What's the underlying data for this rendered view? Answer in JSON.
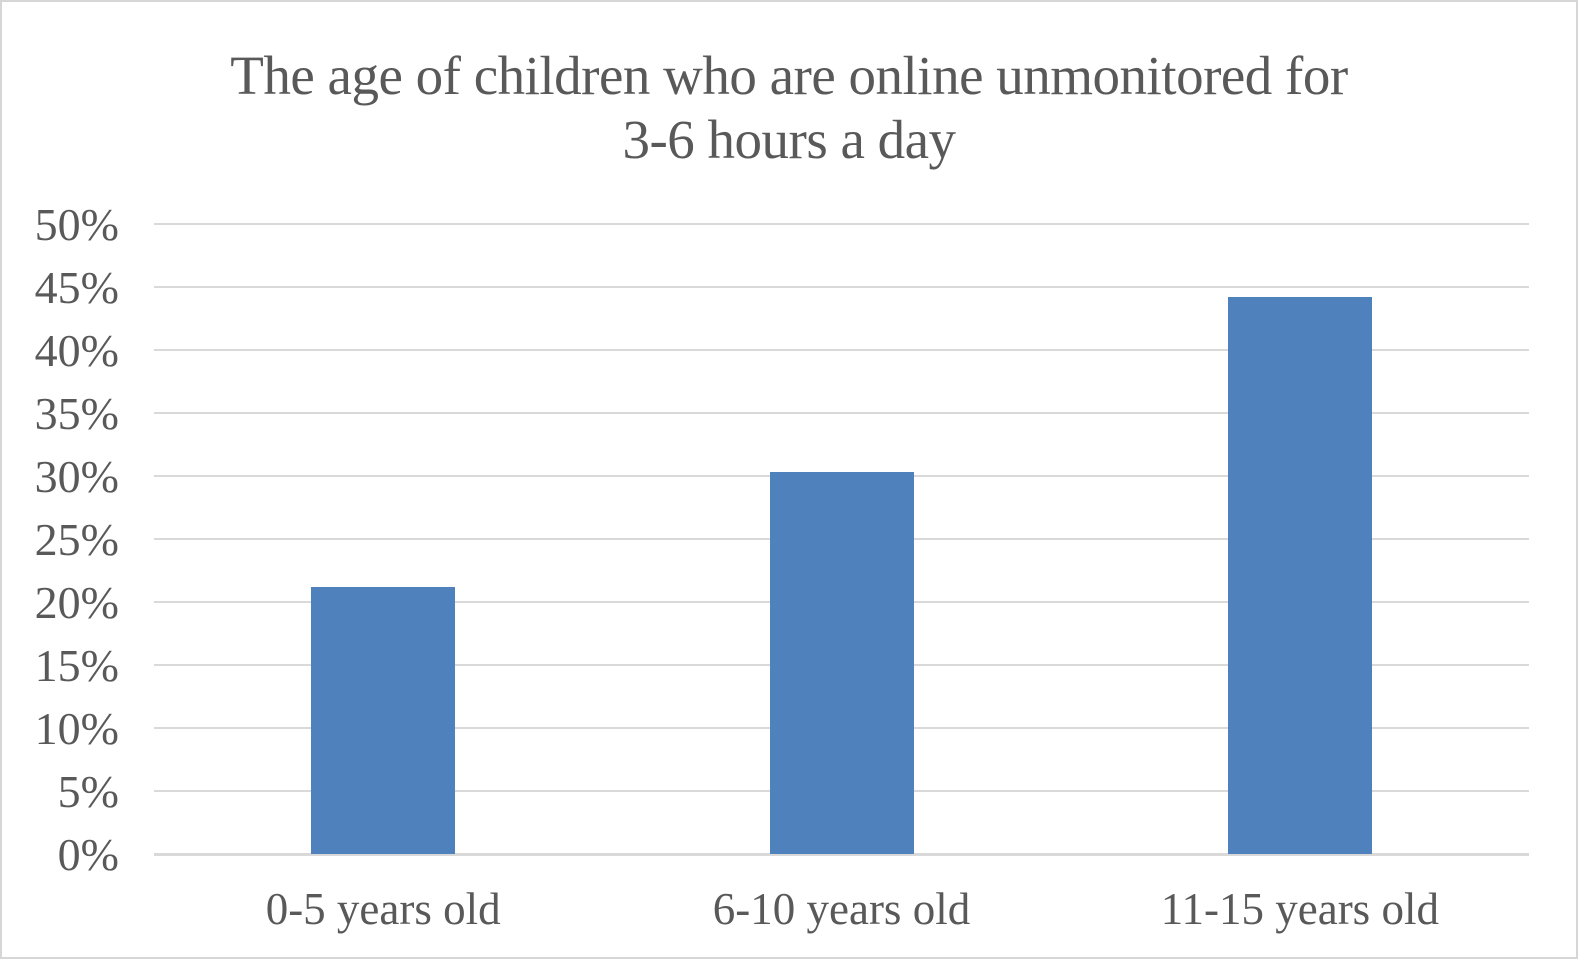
{
  "chart_data": {
    "type": "bar",
    "title": "The age of children who are online unmonitored for 3-6 hours a day",
    "title_lines": [
      "The age of children who are online unmonitored for",
      "3-6 hours a day"
    ],
    "categories": [
      "0-5 years old",
      "6-10 years old",
      "11-15 years old"
    ],
    "values": [
      21.2,
      30.3,
      44.2
    ],
    "unit": "%",
    "xlabel": "",
    "ylabel": "",
    "ylim": [
      0,
      50
    ],
    "ytick_values": [
      0,
      5,
      10,
      15,
      20,
      25,
      30,
      35,
      40,
      45,
      50
    ],
    "ytick_labels": [
      "0%",
      "5%",
      "10%",
      "15%",
      "20%",
      "25%",
      "30%",
      "35%",
      "40%",
      "45%",
      "50%"
    ],
    "grid": true,
    "legend": false,
    "bar_color": "#4f81bd",
    "grid_color": "#d9d9d9",
    "text_color": "#595959",
    "background_color": "#ffffff",
    "border_color": "#d6d6d6"
  }
}
